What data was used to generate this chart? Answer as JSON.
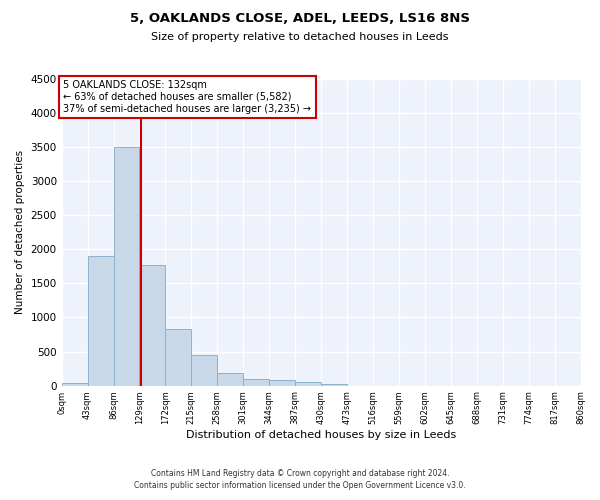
{
  "title": "5, OAKLANDS CLOSE, ADEL, LEEDS, LS16 8NS",
  "subtitle": "Size of property relative to detached houses in Leeds",
  "xlabel": "Distribution of detached houses by size in Leeds",
  "ylabel": "Number of detached properties",
  "property_size": 132,
  "annotation_title": "5 OAKLANDS CLOSE: 132sqm",
  "annotation_line1": "← 63% of detached houses are smaller (5,582)",
  "annotation_line2": "37% of semi-detached houses are larger (3,235) →",
  "footer_line1": "Contains HM Land Registry data © Crown copyright and database right 2024.",
  "footer_line2": "Contains public sector information licensed under the Open Government Licence v3.0.",
  "bar_color": "#c8d8e8",
  "bar_edge_color": "#8ab4cc",
  "vline_color": "#cc0000",
  "annotation_box_color": "#cc0000",
  "background_color": "#eef2fb",
  "grid_color": "#ffffff",
  "fig_facecolor": "#ffffff",
  "bin_edges": [
    0,
    43,
    86,
    129,
    172,
    215,
    258,
    301,
    344,
    387,
    430,
    473,
    516,
    559,
    602,
    645,
    688,
    731,
    774,
    817,
    860
  ],
  "bar_values": [
    45,
    1900,
    3500,
    1775,
    825,
    450,
    190,
    100,
    80,
    50,
    30,
    0,
    0,
    0,
    0,
    0,
    0,
    0,
    0,
    0
  ],
  "ylim": [
    0,
    4500
  ],
  "yticks": [
    0,
    500,
    1000,
    1500,
    2000,
    2500,
    3000,
    3500,
    4000,
    4500
  ]
}
